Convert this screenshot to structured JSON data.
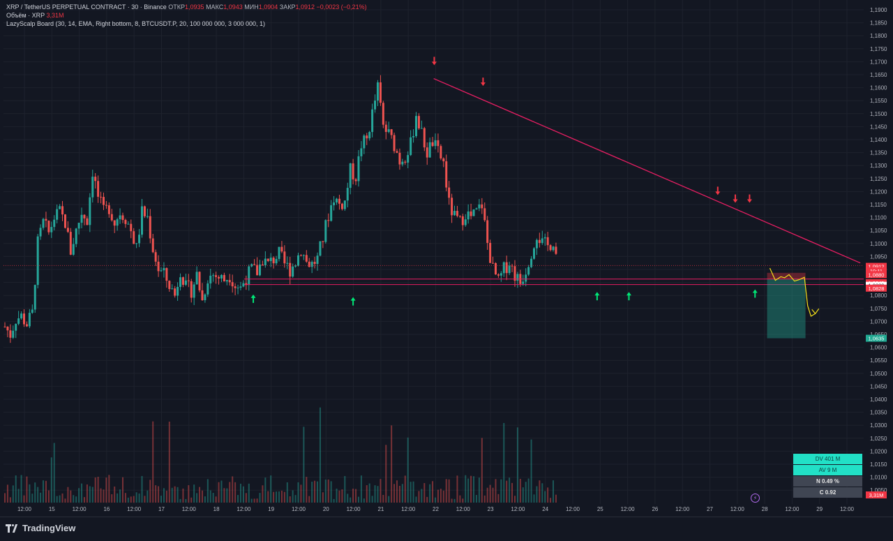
{
  "header": {
    "symbol": "XRP / TetherUS PERPETUAL CONTRACT · 30 · Binance",
    "open_label": "ОТКР",
    "open": "1,0935",
    "high_label": "МАКС",
    "high": "1,0943",
    "low_label": "МИН",
    "low": "1,0904",
    "close_label": "ЗАКР",
    "close": "1,0912",
    "change": "−0,0023 (−0,21%)",
    "volume_label": "Объём · XRP",
    "volume_value": "3,31M",
    "indicator": "LazyScalp Board (30, 14, EMA, Right bottom, 8, BTCUSDT.P, 20, 100 000 000, 3 000 000, 1)"
  },
  "brand": "TradingView",
  "stats_table": [
    {
      "text": "DV  401 M",
      "style": "teal"
    },
    {
      "text": "AV  9 M",
      "style": "teal"
    },
    {
      "text": "N  0.49 %",
      "style": "gray"
    },
    {
      "text": "C   0.92",
      "style": "gray"
    }
  ],
  "colors": {
    "background": "#131722",
    "up": "#26a69a",
    "down": "#ef5350",
    "trendline": "#e91e63",
    "support_line": "#e91e63",
    "arrow_down": "#f23645",
    "arrow_up": "#00e676",
    "projection": "#f5e11a",
    "last_price_badge": "#f23645",
    "target_badge": "#22ab94"
  },
  "chart_data": {
    "type": "candlestick",
    "instrument": "XRP / TetherUS PERPETUAL CONTRACT",
    "timeframe": "30",
    "ylim": [
      1.045,
      1.195
    ],
    "y_ticks": [
      "1,1900",
      "1,1850",
      "1,1800",
      "1,1750",
      "1,1700",
      "1,1650",
      "1,1600",
      "1,1550",
      "1,1500",
      "1,1450",
      "1,1400",
      "1,1350",
      "1,1300",
      "1,1250",
      "1,1200",
      "1,1150",
      "1,1100",
      "1,1050",
      "1,1000",
      "1,0950",
      "1,0900",
      "1,0850",
      "1,0800",
      "1,0750",
      "1,0700",
      "1,0650",
      "1,0600",
      "1,0550",
      "1,0500",
      "1,0450",
      "1,0400",
      "1,0350",
      "1,0300",
      "1,0250",
      "1,0200",
      "1,0150",
      "1,0100",
      "1,0050"
    ],
    "x_ticks": [
      "12:00",
      "15",
      "12:00",
      "16",
      "12:00",
      "17",
      "12:00",
      "18",
      "12:00",
      "19",
      "12:00",
      "20",
      "12:00",
      "21",
      "12:00",
      "22",
      "12:00",
      "23",
      "12:00",
      "24",
      "12:00",
      "25",
      "12:00",
      "26",
      "12:00",
      "27",
      "12:00",
      "28",
      "12:00",
      "29",
      "12:00"
    ],
    "x_range": [
      0,
      102
    ],
    "anchor_path": [
      [
        0,
        1.068
      ],
      [
        1,
        1.065
      ],
      [
        2,
        1.071
      ],
      [
        3,
        1.072
      ],
      [
        4,
        1.069
      ],
      [
        5,
        1.073
      ],
      [
        6,
        1.1
      ],
      [
        7,
        1.108
      ],
      [
        8,
        1.104
      ],
      [
        9,
        1.11
      ],
      [
        10,
        1.112
      ],
      [
        11,
        1.108
      ],
      [
        12,
        1.097
      ],
      [
        13,
        1.105
      ],
      [
        14,
        1.112
      ],
      [
        15,
        1.109
      ],
      [
        16,
        1.128
      ],
      [
        17,
        1.118
      ],
      [
        18,
        1.112
      ],
      [
        19,
        1.114
      ],
      [
        20,
        1.108
      ],
      [
        21,
        1.112
      ],
      [
        22,
        1.11
      ],
      [
        23,
        1.105
      ],
      [
        24,
        1.098
      ],
      [
        25,
        1.112
      ],
      [
        26,
        1.11
      ],
      [
        27,
        1.098
      ],
      [
        28,
        1.09
      ],
      [
        29,
        1.088
      ],
      [
        30,
        1.084
      ],
      [
        31,
        1.08
      ],
      [
        32,
        1.09
      ],
      [
        33,
        1.083
      ],
      [
        34,
        1.082
      ],
      [
        35,
        1.088
      ],
      [
        36,
        1.078
      ],
      [
        37,
        1.087
      ],
      [
        38,
        1.088
      ],
      [
        39,
        1.087
      ],
      [
        40,
        1.086
      ],
      [
        41,
        1.088
      ],
      [
        42,
        1.084
      ],
      [
        43,
        1.083
      ],
      [
        44,
        1.087
      ],
      [
        45,
        1.09
      ],
      [
        46,
        1.089
      ],
      [
        47,
        1.094
      ],
      [
        48,
        1.092
      ],
      [
        49,
        1.094
      ],
      [
        50,
        1.096
      ],
      [
        51,
        1.092
      ],
      [
        52,
        1.09
      ],
      [
        53,
        1.093
      ],
      [
        54,
        1.098
      ],
      [
        55,
        1.093
      ],
      [
        56,
        1.092
      ],
      [
        57,
        1.094
      ],
      [
        58,
        1.102
      ],
      [
        59,
        1.111
      ],
      [
        60,
        1.118
      ],
      [
        61,
        1.115
      ],
      [
        62,
        1.116
      ],
      [
        63,
        1.128
      ],
      [
        64,
        1.126
      ],
      [
        65,
        1.138
      ],
      [
        66,
        1.14
      ],
      [
        67,
        1.15
      ],
      [
        68,
        1.16
      ],
      [
        69,
        1.145
      ],
      [
        70,
        1.142
      ],
      [
        71,
        1.138
      ],
      [
        72,
        1.132
      ],
      [
        73,
        1.134
      ],
      [
        74,
        1.138
      ],
      [
        75,
        1.15
      ],
      [
        76,
        1.142
      ],
      [
        77,
        1.135
      ],
      [
        78,
        1.139
      ],
      [
        79,
        1.135
      ],
      [
        80,
        1.131
      ],
      [
        81,
        1.115
      ],
      [
        82,
        1.11
      ],
      [
        83,
        1.108
      ],
      [
        84,
        1.112
      ],
      [
        85,
        1.11
      ],
      [
        86,
        1.112
      ],
      [
        87,
        1.115
      ],
      [
        88,
        1.1
      ],
      [
        89,
        1.09
      ],
      [
        90,
        1.085
      ],
      [
        91,
        1.09
      ],
      [
        92,
        1.093
      ],
      [
        93,
        1.088
      ],
      [
        94,
        1.085
      ],
      [
        95,
        1.09
      ],
      [
        96,
        1.097
      ],
      [
        97,
        1.104
      ],
      [
        98,
        1.1
      ],
      [
        99,
        1.099
      ],
      [
        100,
        1.101
      ],
      [
        101,
        1.091
      ]
    ],
    "trendline": {
      "from": [
        78.2,
        1.1635
      ],
      "to": [
        156,
        1.0925
      ]
    },
    "support_lines": [
      1.0842,
      1.0863
    ],
    "current_price_line": 1.0915,
    "down_arrows": [
      [
        78.3,
        1.17
      ],
      [
        87.2,
        1.162
      ],
      [
        130,
        1.12
      ],
      [
        133.2,
        1.117
      ],
      [
        135.8,
        1.117
      ]
    ],
    "up_arrows": [
      [
        45.3,
        1.079
      ],
      [
        63.5,
        1.078
      ],
      [
        108,
        1.08
      ],
      [
        113.8,
        1.08
      ],
      [
        136.8,
        1.081
      ]
    ],
    "projection_zone": {
      "x0": 139,
      "x1": 146,
      "top": 1.0887,
      "entry": 1.0862,
      "target": 1.0635
    },
    "projection_path": [
      [
        139.5,
        1.0905
      ],
      [
        140.5,
        1.0858
      ],
      [
        141.5,
        1.0872
      ],
      [
        142.2,
        1.0868
      ],
      [
        143,
        1.088
      ],
      [
        144,
        1.0855
      ],
      [
        145,
        1.0862
      ],
      [
        145.8,
        1.087
      ],
      [
        146.4,
        1.076
      ],
      [
        147,
        1.072
      ],
      [
        147.8,
        1.073
      ]
    ],
    "price_badges": [
      {
        "text": "1,0912",
        "value": 1.0912,
        "bg": "#f23645"
      },
      {
        "text": "10:11",
        "value": 1.0895,
        "bg": "#f23645"
      },
      {
        "text": "1,0880",
        "value": 1.088,
        "bg": "#f23645"
      },
      {
        "text": "1,0849",
        "value": 1.0849,
        "bg": "#f23645"
      },
      {
        "text": "1,0839",
        "value": 1.0839,
        "bg": "#ffffff",
        "fg": "#131722"
      },
      {
        "text": "1,0828",
        "value": 1.0828,
        "bg": "#f23645"
      },
      {
        "text": "1,0635",
        "value": 1.0635,
        "bg": "#22ab94"
      }
    ],
    "volume_badge": "3,31M",
    "grid": true
  }
}
